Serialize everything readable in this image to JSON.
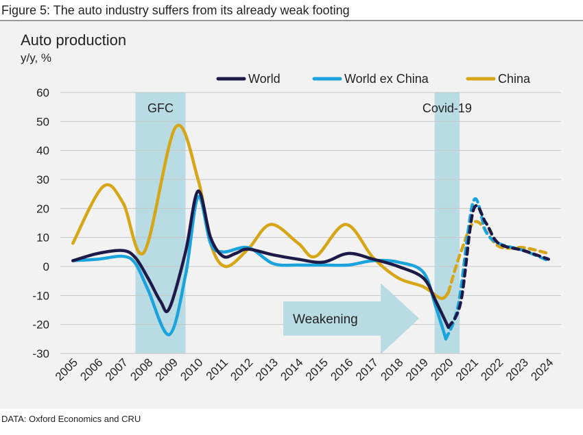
{
  "figure_title": "Figure 5: The auto industry suffers from its already weak footing",
  "source": "DATA: Oxford Economics and CRU",
  "chart_data": {
    "type": "line",
    "title": "Auto production",
    "ylabel": "y/y, %",
    "xlim": [
      2004.5,
      2024.5
    ],
    "xticks": [
      2005,
      2006,
      2007,
      2008,
      2009,
      2010,
      2011,
      2012,
      2013,
      2014,
      2015,
      2016,
      2017,
      2018,
      2019,
      2020,
      2021,
      2022,
      2023,
      2024
    ],
    "ylim": [
      -30,
      60
    ],
    "yticks": [
      -30,
      -20,
      -10,
      0,
      10,
      20,
      30,
      40,
      50,
      60
    ],
    "grid": true,
    "forecast_from": 2020,
    "bands": [
      {
        "label": "GFC",
        "from": 2007.5,
        "to": 2009.5,
        "color": "#b9dbe4"
      },
      {
        "label": "Covid-19",
        "from": 2019.45,
        "to": 2020.45,
        "color": "#b9dbe4"
      }
    ],
    "annotation": "Weakening",
    "series": [
      {
        "name": "World",
        "color": "#1e1a47",
        "x": [
          2005,
          2006,
          2007,
          2007.5,
          2008,
          2008.5,
          2008.85,
          2009.5,
          2010,
          2010.5,
          2011,
          2011.5,
          2012,
          2013,
          2014,
          2015,
          2016,
          2017,
          2018,
          2019,
          2019.5,
          2020,
          2020.5,
          2021,
          2021.5,
          2022,
          2023,
          2024
        ],
        "values": [
          2,
          4.5,
          5.5,
          3,
          -4,
          -12,
          -14.5,
          5,
          26,
          10,
          3.5,
          4.5,
          6,
          4,
          2.5,
          1.5,
          4.5,
          2.5,
          0,
          -4,
          -12,
          -21,
          -12,
          19.5,
          15,
          8,
          5.5,
          2.5
        ]
      },
      {
        "name": "World ex China",
        "color": "#1aa3dc",
        "x": [
          2005,
          2006,
          2007,
          2007.5,
          2008,
          2008.85,
          2009.5,
          2010,
          2010.5,
          2011,
          2012,
          2013,
          2014,
          2015,
          2016,
          2017,
          2018,
          2019,
          2019.5,
          2019.9,
          2020.4,
          2021,
          2021.5,
          2022,
          2023,
          2024
        ],
        "values": [
          2,
          2.5,
          3.5,
          1,
          -8,
          -23.5,
          -3,
          24,
          8,
          5,
          6.5,
          1,
          0.5,
          0.5,
          0.5,
          2,
          1.5,
          -2,
          -14,
          -25,
          -13,
          22.5,
          12,
          8,
          5.5,
          2
        ]
      },
      {
        "name": "China",
        "color": "#d6a616",
        "x": [
          2005,
          2006.2,
          2007,
          2007.85,
          2009.1,
          2010,
          2010.5,
          2011.1,
          2012,
          2012.9,
          2014,
          2014.7,
          2015.9,
          2017,
          2018,
          2019,
          2019.7,
          2020,
          2020.5,
          2021.1,
          2022,
          2023,
          2024
        ],
        "values": [
          8,
          27.5,
          22,
          5,
          48,
          30,
          8,
          0,
          6,
          14.5,
          8,
          3.5,
          14.5,
          3,
          -4,
          -7,
          -11,
          -9,
          5,
          15.5,
          7,
          6.5,
          4.5
        ]
      }
    ]
  }
}
